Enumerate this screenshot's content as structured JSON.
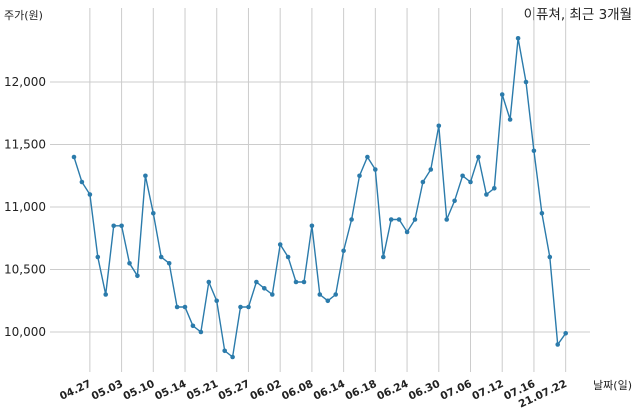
{
  "chart_data": {
    "type": "line",
    "title": "이퓨쳐, 최근 3개월",
    "ylabel": "주가(원)",
    "xlabel": "날짜(일)",
    "ylim": [
      9700,
      12550
    ],
    "yticks": [
      10000,
      10500,
      11000,
      11500,
      12000
    ],
    "ytick_labels": [
      "10,000",
      "10,500",
      "11,000",
      "11,500",
      "12,000"
    ],
    "grid": true,
    "color": "#2b7bab",
    "x_tick_indices": [
      2,
      6,
      10,
      14,
      18,
      22,
      26,
      30,
      34,
      38,
      42,
      46,
      50,
      54,
      58,
      62
    ],
    "x_tick_labels": [
      "04.27",
      "05.03",
      "05.10",
      "05.14",
      "05.21",
      "05.27",
      "06.02",
      "06.08",
      "06.14",
      "06.18",
      "06.24",
      "06.30",
      "07.06",
      "07.12",
      "07.16",
      "21.07.22"
    ],
    "series": [
      {
        "values": [
          11400,
          11200,
          11100,
          10600,
          10300,
          10850,
          10850,
          10550,
          10450,
          11250,
          10950,
          10600,
          10550,
          10200,
          10200,
          10050,
          10000,
          10400,
          10250,
          9850,
          9800,
          10200,
          10200,
          10400,
          10350,
          10300,
          10700,
          10600,
          10400,
          10400,
          10850,
          10300,
          10250,
          10300,
          10650,
          10900,
          11250,
          11400,
          11300,
          10600,
          10900,
          10900,
          10800,
          10900,
          11200,
          11300,
          11650,
          10900,
          11050,
          11250,
          11200,
          11400,
          11100,
          11150,
          11900,
          11700,
          12350,
          12000,
          11450,
          10950,
          10600,
          9900,
          9990
        ]
      }
    ]
  }
}
